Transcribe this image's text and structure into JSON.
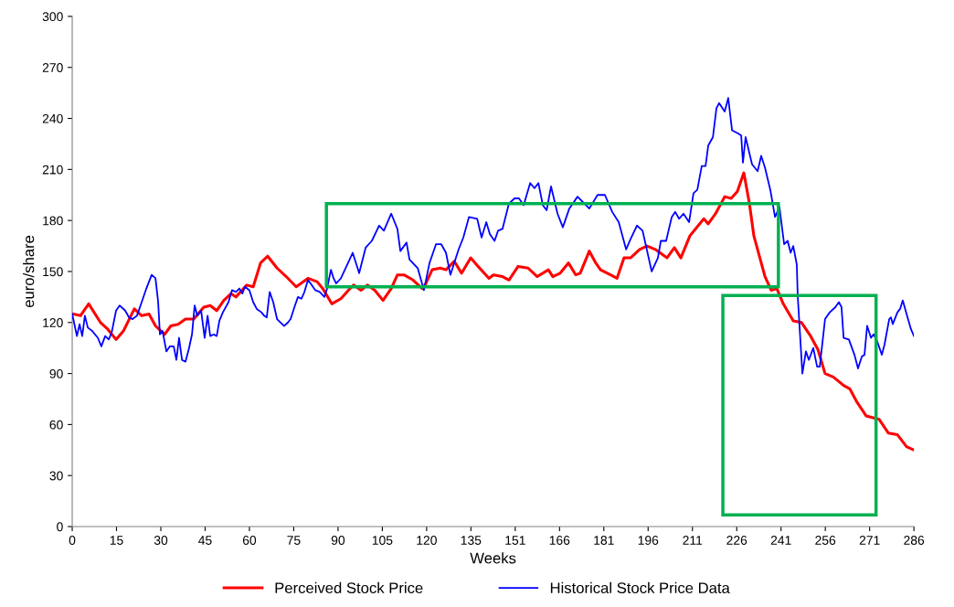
{
  "chart_data": {
    "type": "line",
    "xlabel": "Weeks",
    "ylabel": "euro/share",
    "xlim": [
      0,
      286
    ],
    "ylim": [
      0,
      300
    ],
    "xticks": [
      0,
      {
        "value": 15.05,
        "label": "15"
      },
      {
        "value": 30.11,
        "label": "30"
      },
      {
        "value": 45.16,
        "label": "45"
      },
      {
        "value": 60.21,
        "label": "60"
      },
      {
        "value": 75.26,
        "label": "75"
      },
      {
        "value": 90.32,
        "label": "90"
      },
      {
        "value": 105.37,
        "label": "105"
      },
      {
        "value": 120.42,
        "label": "120"
      },
      {
        "value": 135.47,
        "label": "135"
      },
      {
        "value": 150.53,
        "label": "151"
      },
      {
        "value": 165.58,
        "label": "166"
      },
      {
        "value": 180.63,
        "label": "181"
      },
      {
        "value": 195.68,
        "label": "196"
      },
      {
        "value": 210.74,
        "label": "211"
      },
      {
        "value": 225.79,
        "label": "226"
      },
      {
        "value": 240.84,
        "label": "241"
      },
      {
        "value": 255.89,
        "label": "256"
      },
      {
        "value": 270.95,
        "label": "271"
      },
      286
    ],
    "yticks": [
      0,
      30,
      60,
      90,
      120,
      150,
      180,
      210,
      240,
      270,
      300
    ],
    "grid": false,
    "legend": "bottom",
    "series": [
      {
        "name": "Perceived Stock Price",
        "color": "#ff0000",
        "x": [
          0.3,
          2.8,
          5.6,
          9.6,
          12.1,
          14.9,
          17.4,
          21.1,
          23.6,
          26.1,
          28.3,
          31.4,
          33.5,
          36.0,
          38.5,
          41.3,
          44.7,
          46.9,
          49.1,
          51.5,
          54.0,
          55.6,
          59.3,
          61.5,
          64.0,
          66.4,
          69.6,
          72.7,
          76.1,
          80.1,
          83.2,
          85.1,
          88.2,
          91.3,
          94.4,
          95.6,
          98.1,
          100.3,
          102.8,
          105.6,
          108.4,
          110.5,
          112.7,
          115.8,
          118.9,
          119.9,
          122.3,
          125.1,
          127.0,
          129.8,
          132.3,
          135.4,
          137.9,
          141.6,
          143.1,
          146.2,
          148.4,
          151.5,
          154.9,
          158.0,
          161.8,
          163.3,
          165.8,
          168.6,
          171.1,
          172.6,
          175.7,
          177.9,
          179.5,
          182.9,
          185.1,
          187.5,
          189.7,
          192.8,
          195.3,
          198.1,
          202.1,
          204.6,
          206.8,
          209.9,
          214.6,
          216.1,
          218.6,
          221.7,
          223.9,
          226.0,
          228.2,
          230.1,
          231.6,
          235.4,
          237.5,
          239.4,
          241.6,
          245.0,
          247.8,
          250.9,
          253.4,
          255.8,
          258.6,
          262.1,
          264.2,
          266.7,
          269.8,
          274.2,
          277.3,
          280.4,
          283.5,
          286.0
        ],
        "values": [
          125,
          124,
          131,
          120,
          116,
          110,
          115,
          128,
          124,
          125,
          118,
          113,
          118,
          119,
          122,
          122,
          129,
          130,
          127,
          133,
          137,
          135,
          142,
          141,
          155,
          159,
          152,
          147,
          141,
          146,
          144,
          140,
          131,
          134,
          140,
          142,
          139,
          142,
          139,
          133,
          140,
          148,
          148,
          145,
          140,
          142,
          151,
          152,
          151,
          156,
          149,
          158,
          153,
          146,
          148,
          147,
          145,
          153,
          152,
          147,
          151,
          147,
          149,
          155,
          148,
          149,
          162,
          155,
          151,
          148,
          146,
          158,
          158,
          163,
          165,
          163,
          158,
          164,
          158,
          171,
          181,
          178,
          184,
          194,
          193,
          197,
          208,
          190,
          171,
          147,
          139,
          140,
          131,
          121,
          120,
          112,
          104,
          90,
          88,
          83,
          81,
          73,
          65,
          63,
          55,
          54,
          47,
          45
        ]
      },
      {
        "name": "Historical Stock Price Data",
        "color": "#0000ff",
        "x": [
          0,
          1.6,
          2.5,
          3.4,
          4.3,
          5.3,
          6.8,
          8.7,
          9.9,
          11.2,
          12.4,
          13.4,
          14.9,
          16.1,
          18.0,
          19.3,
          20.5,
          22.0,
          23.6,
          25.2,
          27.0,
          28.3,
          29.2,
          29.8,
          30.7,
          32.0,
          33.2,
          34.5,
          35.4,
          36.3,
          37.3,
          38.5,
          39.7,
          40.7,
          41.6,
          42.5,
          43.8,
          45.0,
          46.0,
          46.9,
          48.1,
          49.1,
          50.0,
          51.2,
          53.1,
          54.3,
          55.6,
          56.8,
          57.8,
          58.7,
          60.2,
          61.5,
          62.7,
          64.3,
          65.2,
          66.1,
          67.1,
          68.3,
          69.6,
          70.8,
          72.0,
          73.3,
          74.2,
          75.5,
          76.7,
          77.9,
          78.9,
          80.1,
          81.0,
          82.6,
          84.1,
          85.7,
          86.6,
          87.9,
          88.8,
          89.7,
          91.3,
          95.3,
          97.5,
          99.7,
          101.8,
          104.3,
          105.9,
          108.4,
          110.5,
          111.5,
          113.6,
          114.6,
          117.4,
          119.5,
          121.4,
          123.6,
          125.4,
          127.0,
          128.5,
          131.3,
          132.9,
          134.8,
          137.6,
          139.1,
          140.7,
          141.9,
          143.5,
          144.7,
          146.2,
          148.4,
          150.3,
          151.8,
          153.4,
          155.6,
          157.1,
          158.4,
          159.9,
          161.2,
          162.7,
          164.9,
          166.7,
          168.9,
          171.7,
          175.7,
          178.5,
          181.0,
          183.5,
          185.7,
          188.2,
          189.7,
          191.9,
          193.8,
          196.9,
          199.0,
          200.0,
          201.8,
          203.7,
          204.9,
          206.2,
          207.7,
          209.6,
          211.1,
          212.4,
          213.9,
          215.2,
          216.1,
          217.7,
          218.9,
          219.8,
          221.7,
          222.9,
          224.2,
          226.4,
          227.3,
          227.9,
          228.8,
          231.0,
          232.9,
          234.1,
          235.4,
          237.2,
          238.8,
          240.3,
          241.9,
          243.1,
          244.1,
          245.0,
          246.2,
          246.5,
          248.1,
          249.3,
          250.3,
          251.8,
          253.1,
          254.0,
          255.8,
          257.4,
          259.3,
          260.5,
          261.4,
          262.1,
          263.9,
          265.8,
          267.0,
          268.3,
          269.2,
          270.1,
          271.4,
          272.3,
          273.5,
          275.1,
          276.0,
          277.6,
          278.2,
          278.8,
          280.4,
          281.3,
          282.2,
          283.5,
          285.0,
          286.0
        ],
        "values": [
          125,
          112,
          119,
          112,
          124,
          117,
          115,
          111,
          106,
          112,
          110,
          114,
          127,
          130,
          127,
          123,
          122,
          124,
          132,
          140,
          148,
          146,
          132,
          113,
          115,
          103,
          106,
          106,
          98,
          111,
          98,
          97,
          105,
          113,
          130,
          124,
          127,
          111,
          124,
          112,
          113,
          112,
          121,
          126,
          132,
          139,
          138,
          140,
          137,
          141,
          139,
          132,
          128,
          126,
          124,
          123,
          138,
          132,
          122,
          120,
          118,
          120,
          122,
          129,
          135,
          134,
          138,
          145,
          143,
          139,
          138,
          135,
          140,
          151,
          146,
          143,
          146,
          161,
          149,
          164,
          168,
          177,
          174,
          184,
          175,
          162,
          167,
          157,
          152,
          139,
          155,
          166,
          166,
          161,
          148,
          163,
          170,
          182,
          181,
          170,
          179,
          172,
          168,
          174,
          175,
          190,
          193,
          193,
          189,
          202,
          199,
          202,
          189,
          186,
          200,
          184,
          176,
          187,
          194,
          187,
          195,
          195,
          185,
          179,
          163,
          169,
          177,
          174,
          150,
          158,
          168,
          168,
          182,
          185,
          181,
          184,
          179,
          196,
          198,
          212,
          212,
          224,
          229,
          246,
          249,
          244,
          252,
          233,
          231,
          230,
          214,
          229,
          213,
          209,
          218,
          211,
          198,
          182,
          188,
          166,
          168,
          161,
          165,
          154,
          136,
          90,
          103,
          98,
          105,
          94,
          94,
          122,
          126,
          129,
          132,
          129,
          111,
          110,
          101,
          93,
          100,
          101,
          118,
          111,
          113,
          109,
          101,
          107,
          122,
          123,
          119,
          126,
          128,
          133,
          125,
          116,
          112
        ]
      }
    ]
  }
}
